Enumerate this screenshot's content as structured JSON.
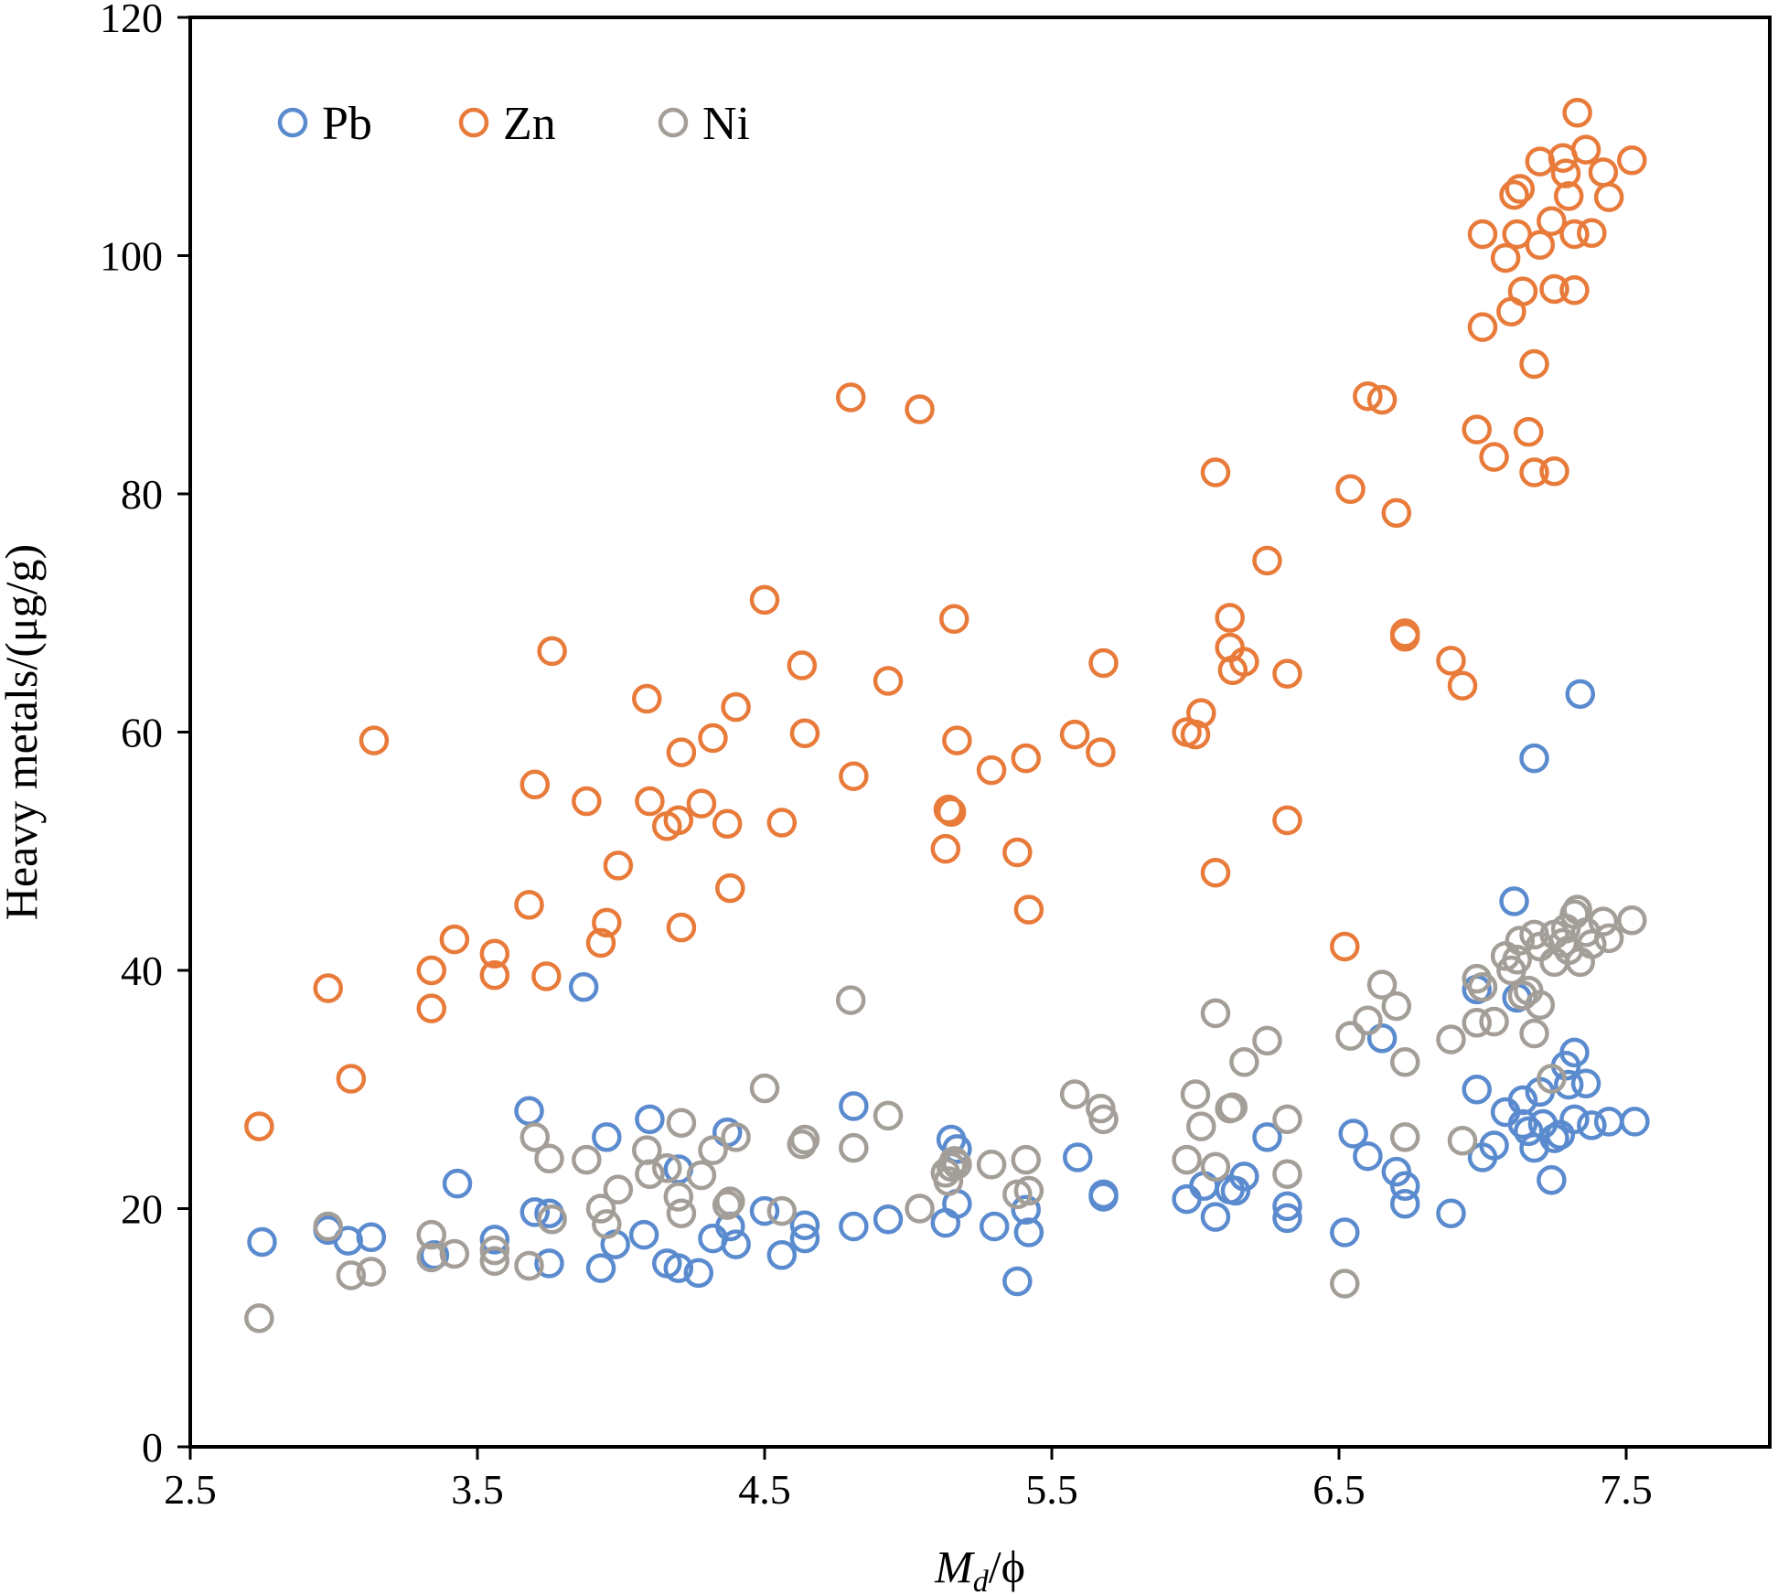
{
  "chart_data": {
    "type": "scatter",
    "title": "",
    "xlabel_main": "M",
    "xlabel_sub": "d",
    "xlabel_tail": "/ϕ",
    "ylabel": "Heavy metals/(μg/g)",
    "xlim": [
      2.5,
      8.0
    ],
    "ylim": [
      0,
      120
    ],
    "x_ticks": [
      "2.5",
      "3.5",
      "4.5",
      "5.5",
      "6.5",
      "7.5"
    ],
    "x_tick_values": [
      2.5,
      3.5,
      4.5,
      5.5,
      6.5,
      7.5
    ],
    "y_ticks": [
      "0",
      "20",
      "40",
      "60",
      "80",
      "100",
      "120"
    ],
    "y_tick_values": [
      0,
      20,
      40,
      60,
      80,
      100,
      120
    ],
    "grid": false,
    "legend_position": "top-left",
    "marker": "open-circle",
    "series": [
      {
        "name": "Pb",
        "color": "#5b8bcf",
        "points": [
          [
            2.75,
            17.2
          ],
          [
            2.98,
            18.2
          ],
          [
            3.05,
            17.3
          ],
          [
            3.13,
            17.6
          ],
          [
            3.35,
            16.1
          ],
          [
            3.43,
            22.1
          ],
          [
            3.56,
            17.4
          ],
          [
            3.68,
            28.2
          ],
          [
            3.7,
            19.7
          ],
          [
            3.75,
            19.6
          ],
          [
            3.75,
            15.4
          ],
          [
            3.87,
            38.6
          ],
          [
            3.93,
            15.0
          ],
          [
            3.95,
            26.0
          ],
          [
            3.98,
            17.0
          ],
          [
            4.08,
            17.8
          ],
          [
            4.1,
            27.5
          ],
          [
            4.16,
            15.4
          ],
          [
            4.2,
            15.0
          ],
          [
            4.2,
            23.3
          ],
          [
            4.27,
            14.6
          ],
          [
            4.32,
            17.5
          ],
          [
            4.37,
            26.4
          ],
          [
            4.38,
            18.5
          ],
          [
            4.4,
            17.0
          ],
          [
            4.5,
            19.8
          ],
          [
            4.56,
            16.1
          ],
          [
            4.64,
            18.6
          ],
          [
            4.64,
            17.5
          ],
          [
            4.81,
            28.6
          ],
          [
            4.81,
            18.5
          ],
          [
            4.93,
            19.1
          ],
          [
            5.13,
            18.8
          ],
          [
            5.15,
            25.8
          ],
          [
            5.17,
            25.0
          ],
          [
            5.17,
            20.4
          ],
          [
            5.3,
            18.5
          ],
          [
            5.38,
            13.9
          ],
          [
            5.41,
            19.9
          ],
          [
            5.42,
            18.0
          ],
          [
            5.59,
            24.3
          ],
          [
            5.68,
            21.2
          ],
          [
            5.68,
            21.0
          ],
          [
            5.97,
            20.8
          ],
          [
            6.03,
            21.9
          ],
          [
            6.07,
            19.3
          ],
          [
            6.12,
            21.6
          ],
          [
            6.14,
            21.5
          ],
          [
            6.17,
            22.7
          ],
          [
            6.25,
            26.0
          ],
          [
            6.32,
            20.2
          ],
          [
            6.32,
            19.2
          ],
          [
            6.52,
            18.0
          ],
          [
            6.55,
            26.3
          ],
          [
            6.6,
            24.4
          ],
          [
            6.65,
            34.3
          ],
          [
            6.7,
            23.1
          ],
          [
            6.73,
            20.4
          ],
          [
            6.73,
            21.9
          ],
          [
            6.89,
            19.6
          ],
          [
            6.98,
            38.4
          ],
          [
            6.98,
            30.0
          ],
          [
            7.0,
            24.3
          ],
          [
            7.04,
            25.3
          ],
          [
            7.08,
            28.1
          ],
          [
            7.11,
            45.8
          ],
          [
            7.12,
            37.7
          ],
          [
            7.14,
            29.1
          ],
          [
            7.14,
            27.1
          ],
          [
            7.16,
            26.5
          ],
          [
            7.18,
            25.1
          ],
          [
            7.18,
            57.8
          ],
          [
            7.2,
            29.8
          ],
          [
            7.21,
            27.1
          ],
          [
            7.24,
            22.4
          ],
          [
            7.25,
            25.9
          ],
          [
            7.27,
            26.2
          ],
          [
            7.29,
            32.0
          ],
          [
            7.3,
            30.4
          ],
          [
            7.32,
            33.1
          ],
          [
            7.32,
            27.5
          ],
          [
            7.34,
            63.2
          ],
          [
            7.36,
            30.5
          ],
          [
            7.38,
            27.0
          ],
          [
            7.44,
            27.3
          ],
          [
            7.53,
            27.3
          ]
        ]
      },
      {
        "name": "Zn",
        "color": "#e87a3a",
        "points": [
          [
            2.74,
            26.9
          ],
          [
            2.98,
            38.5
          ],
          [
            3.06,
            30.9
          ],
          [
            3.14,
            59.3
          ],
          [
            3.34,
            40.0
          ],
          [
            3.34,
            36.8
          ],
          [
            3.42,
            42.6
          ],
          [
            3.56,
            41.4
          ],
          [
            3.56,
            39.6
          ],
          [
            3.68,
            45.5
          ],
          [
            3.7,
            55.6
          ],
          [
            3.74,
            39.5
          ],
          [
            3.76,
            66.8
          ],
          [
            3.88,
            54.2
          ],
          [
            3.93,
            42.3
          ],
          [
            3.95,
            44.0
          ],
          [
            3.99,
            48.8
          ],
          [
            4.09,
            62.8
          ],
          [
            4.1,
            54.2
          ],
          [
            4.16,
            52.1
          ],
          [
            4.2,
            52.6
          ],
          [
            4.21,
            58.3
          ],
          [
            4.21,
            43.6
          ],
          [
            4.28,
            54.0
          ],
          [
            4.32,
            59.5
          ],
          [
            4.37,
            52.3
          ],
          [
            4.38,
            46.9
          ],
          [
            4.4,
            62.1
          ],
          [
            4.5,
            71.1
          ],
          [
            4.56,
            52.4
          ],
          [
            4.63,
            65.6
          ],
          [
            4.64,
            59.9
          ],
          [
            4.8,
            88.1
          ],
          [
            4.81,
            56.3
          ],
          [
            4.93,
            64.3
          ],
          [
            5.04,
            87.1
          ],
          [
            5.13,
            50.2
          ],
          [
            5.14,
            53.5
          ],
          [
            5.15,
            53.3
          ],
          [
            5.16,
            69.5
          ],
          [
            5.17,
            59.3
          ],
          [
            5.29,
            56.8
          ],
          [
            5.38,
            49.9
          ],
          [
            5.41,
            57.8
          ],
          [
            5.42,
            45.1
          ],
          [
            5.58,
            59.8
          ],
          [
            5.67,
            58.3
          ],
          [
            5.68,
            65.8
          ],
          [
            5.97,
            60.0
          ],
          [
            6.0,
            59.8
          ],
          [
            6.02,
            61.6
          ],
          [
            6.07,
            81.8
          ],
          [
            6.07,
            48.2
          ],
          [
            6.12,
            69.6
          ],
          [
            6.12,
            67.1
          ],
          [
            6.13,
            65.2
          ],
          [
            6.17,
            65.9
          ],
          [
            6.25,
            74.4
          ],
          [
            6.32,
            64.9
          ],
          [
            6.32,
            52.6
          ],
          [
            6.52,
            42.0
          ],
          [
            6.54,
            80.4
          ],
          [
            6.6,
            88.2
          ],
          [
            6.65,
            87.9
          ],
          [
            6.7,
            78.4
          ],
          [
            6.73,
            68.3
          ],
          [
            6.73,
            68.0
          ],
          [
            6.89,
            66.0
          ],
          [
            6.93,
            63.9
          ],
          [
            6.98,
            85.4
          ],
          [
            7.0,
            94.0
          ],
          [
            7.0,
            101.8
          ],
          [
            7.04,
            83.1
          ],
          [
            7.08,
            99.8
          ],
          [
            7.1,
            95.3
          ],
          [
            7.11,
            105.1
          ],
          [
            7.12,
            101.8
          ],
          [
            7.13,
            105.6
          ],
          [
            7.14,
            97.0
          ],
          [
            7.16,
            85.2
          ],
          [
            7.18,
            81.8
          ],
          [
            7.18,
            90.9
          ],
          [
            7.2,
            107.9
          ],
          [
            7.2,
            100.9
          ],
          [
            7.24,
            102.9
          ],
          [
            7.25,
            97.2
          ],
          [
            7.25,
            81.9
          ],
          [
            7.28,
            108.2
          ],
          [
            7.29,
            106.9
          ],
          [
            7.3,
            105.0
          ],
          [
            7.32,
            101.8
          ],
          [
            7.32,
            97.1
          ],
          [
            7.33,
            112.0
          ],
          [
            7.36,
            108.9
          ],
          [
            7.38,
            101.9
          ],
          [
            7.42,
            107.0
          ],
          [
            7.44,
            104.9
          ],
          [
            7.52,
            108.0
          ]
        ]
      },
      {
        "name": "Ni",
        "color": "#a39e98",
        "points": [
          [
            2.74,
            10.8
          ],
          [
            2.98,
            18.5
          ],
          [
            3.06,
            14.4
          ],
          [
            3.13,
            14.7
          ],
          [
            3.34,
            17.8
          ],
          [
            3.34,
            15.9
          ],
          [
            3.42,
            16.2
          ],
          [
            3.56,
            16.5
          ],
          [
            3.56,
            15.6
          ],
          [
            3.68,
            15.2
          ],
          [
            3.7,
            26.0
          ],
          [
            3.75,
            24.2
          ],
          [
            3.76,
            19.1
          ],
          [
            3.88,
            24.1
          ],
          [
            3.93,
            20.0
          ],
          [
            3.95,
            18.7
          ],
          [
            3.99,
            21.6
          ],
          [
            4.09,
            24.9
          ],
          [
            4.1,
            22.9
          ],
          [
            4.16,
            23.4
          ],
          [
            4.2,
            21.0
          ],
          [
            4.21,
            27.2
          ],
          [
            4.21,
            19.6
          ],
          [
            4.28,
            22.8
          ],
          [
            4.32,
            24.9
          ],
          [
            4.37,
            20.3
          ],
          [
            4.38,
            20.6
          ],
          [
            4.4,
            26.0
          ],
          [
            4.5,
            30.1
          ],
          [
            4.56,
            19.8
          ],
          [
            4.63,
            25.4
          ],
          [
            4.64,
            25.8
          ],
          [
            4.8,
            37.5
          ],
          [
            4.81,
            25.1
          ],
          [
            4.93,
            27.8
          ],
          [
            5.04,
            20.0
          ],
          [
            5.13,
            23.0
          ],
          [
            5.14,
            22.3
          ],
          [
            5.15,
            23.5
          ],
          [
            5.16,
            24.0
          ],
          [
            5.17,
            23.7
          ],
          [
            5.29,
            23.7
          ],
          [
            5.38,
            21.2
          ],
          [
            5.41,
            24.1
          ],
          [
            5.42,
            21.5
          ],
          [
            5.58,
            29.6
          ],
          [
            5.67,
            28.4
          ],
          [
            5.68,
            27.5
          ],
          [
            5.97,
            24.1
          ],
          [
            6.0,
            29.6
          ],
          [
            6.02,
            26.9
          ],
          [
            6.07,
            36.4
          ],
          [
            6.07,
            23.5
          ],
          [
            6.12,
            28.4
          ],
          [
            6.13,
            28.5
          ],
          [
            6.17,
            32.3
          ],
          [
            6.25,
            34.1
          ],
          [
            6.32,
            27.5
          ],
          [
            6.32,
            22.9
          ],
          [
            6.52,
            13.7
          ],
          [
            6.54,
            34.5
          ],
          [
            6.6,
            35.8
          ],
          [
            6.65,
            38.8
          ],
          [
            6.7,
            37.0
          ],
          [
            6.73,
            26.0
          ],
          [
            6.73,
            32.3
          ],
          [
            6.89,
            34.2
          ],
          [
            6.93,
            25.7
          ],
          [
            6.98,
            39.3
          ],
          [
            6.98,
            35.6
          ],
          [
            7.0,
            38.6
          ],
          [
            7.04,
            35.7
          ],
          [
            7.08,
            41.2
          ],
          [
            7.1,
            40.0
          ],
          [
            7.12,
            40.9
          ],
          [
            7.13,
            42.5
          ],
          [
            7.14,
            37.9
          ],
          [
            7.16,
            38.3
          ],
          [
            7.18,
            34.7
          ],
          [
            7.18,
            43.0
          ],
          [
            7.2,
            37.1
          ],
          [
            7.2,
            42.0
          ],
          [
            7.24,
            30.9
          ],
          [
            7.25,
            40.7
          ],
          [
            7.25,
            43.0
          ],
          [
            7.28,
            42.3
          ],
          [
            7.29,
            43.5
          ],
          [
            7.3,
            41.7
          ],
          [
            7.32,
            44.7
          ],
          [
            7.33,
            45.1
          ],
          [
            7.34,
            40.7
          ],
          [
            7.36,
            43.2
          ],
          [
            7.38,
            42.2
          ],
          [
            7.42,
            44.1
          ],
          [
            7.44,
            42.7
          ],
          [
            7.52,
            44.2
          ]
        ]
      }
    ]
  }
}
